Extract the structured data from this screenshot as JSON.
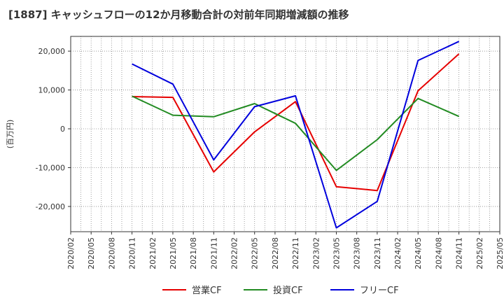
{
  "title": "[1887]  キャッシュフローの12か月移動合計の対前年同期増減額の推移",
  "chart_data": {
    "type": "line",
    "ylabel": "(百万円)",
    "x": [
      "2020/02",
      "2020/05",
      "2020/08",
      "2020/11",
      "2021/02",
      "2021/05",
      "2021/08",
      "2021/11",
      "2022/02",
      "2022/05",
      "2022/08",
      "2022/11",
      "2023/02",
      "2023/05",
      "2023/08",
      "2023/11",
      "2024/02",
      "2024/05",
      "2024/08",
      "2024/11",
      "2025/02",
      "2025/05"
    ],
    "yticks": [
      -20000,
      -10000,
      0,
      10000,
      20000
    ],
    "ytick_labels": [
      "-20,000",
      "-10,000",
      "0",
      "10,000",
      "20,000"
    ],
    "ylim": [
      -26500,
      23800
    ],
    "grid": true,
    "legend_position": "bottom",
    "series": [
      {
        "name": "営業CF",
        "color": "#e60000",
        "points": [
          {
            "x": "2020/11",
            "y": 8300
          },
          {
            "x": "2021/05",
            "y": 8100
          },
          {
            "x": "2021/11",
            "y": -11100
          },
          {
            "x": "2022/05",
            "y": -800
          },
          {
            "x": "2022/11",
            "y": 7000
          },
          {
            "x": "2023/05",
            "y": -14900
          },
          {
            "x": "2023/11",
            "y": -15900
          },
          {
            "x": "2024/05",
            "y": 9800
          },
          {
            "x": "2024/11",
            "y": 19300
          }
        ]
      },
      {
        "name": "投資CF",
        "color": "#228b22",
        "points": [
          {
            "x": "2020/11",
            "y": 8400
          },
          {
            "x": "2021/05",
            "y": 3500
          },
          {
            "x": "2021/11",
            "y": 3100
          },
          {
            "x": "2022/05",
            "y": 6500
          },
          {
            "x": "2022/11",
            "y": 1400
          },
          {
            "x": "2023/05",
            "y": -10700
          },
          {
            "x": "2023/11",
            "y": -2800
          },
          {
            "x": "2024/05",
            "y": 7800
          },
          {
            "x": "2024/11",
            "y": 3200
          }
        ]
      },
      {
        "name": "フリーCF",
        "color": "#0000dd",
        "points": [
          {
            "x": "2020/11",
            "y": 16700
          },
          {
            "x": "2021/05",
            "y": 11500
          },
          {
            "x": "2021/11",
            "y": -8000
          },
          {
            "x": "2022/05",
            "y": 5700
          },
          {
            "x": "2022/11",
            "y": 8500
          },
          {
            "x": "2023/05",
            "y": -25500
          },
          {
            "x": "2023/11",
            "y": -18700
          },
          {
            "x": "2024/05",
            "y": 17600
          },
          {
            "x": "2024/11",
            "y": 22500
          }
        ]
      }
    ]
  }
}
